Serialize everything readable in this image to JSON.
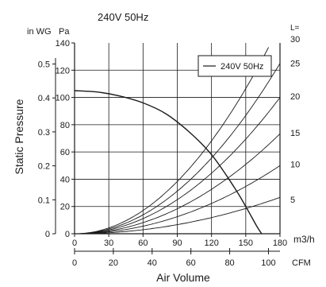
{
  "chart_data": {
    "type": "line",
    "title": "240V 50Hz",
    "xlabel": "Air Volume",
    "ylabel": "Static Pressure",
    "x_unit": "m3/h",
    "x2_unit": "CFM",
    "y_unit": "Pa",
    "y2_unit": "in WG",
    "curve_param_label": "L=",
    "legend": {
      "label": "240V 50Hz",
      "placement": "top-right"
    },
    "grid": true,
    "xlim": [
      0,
      180
    ],
    "ylim": [
      0,
      140
    ],
    "x_ticks": [
      0,
      30,
      60,
      90,
      120,
      150,
      180
    ],
    "y_ticks": [
      0,
      20,
      40,
      60,
      80,
      100,
      120,
      140
    ],
    "x2_ticks": [
      0,
      20,
      40,
      60,
      80,
      100
    ],
    "y2_ticks": [
      0,
      0.1,
      0.2,
      0.3,
      0.4,
      0.5
    ],
    "right_labels": [
      {
        "label": "30",
        "y": 143
      },
      {
        "label": "25",
        "y": 125
      },
      {
        "label": "20",
        "y": 101
      },
      {
        "label": "15",
        "y": 74
      },
      {
        "label": "10",
        "y": 51
      },
      {
        "label": "5",
        "y": 25
      }
    ],
    "fan_curve": {
      "name": "240V 50Hz",
      "x": [
        0,
        20,
        40,
        60,
        80,
        100,
        120,
        140,
        150,
        160,
        164
      ],
      "y": [
        105,
        104,
        101,
        96,
        88,
        75,
        58,
        34,
        20,
        5,
        0
      ]
    },
    "system_curves": [
      {
        "name": "L=5",
        "k": 0.000823
      },
      {
        "name": "L=10",
        "k": 0.001543
      },
      {
        "name": "L=15",
        "k": 0.002263
      },
      {
        "name": "L=20",
        "k": 0.003086
      },
      {
        "name": "L=25",
        "k": 0.003858
      },
      {
        "name": "L=30",
        "k": 0.004733
      }
    ]
  }
}
